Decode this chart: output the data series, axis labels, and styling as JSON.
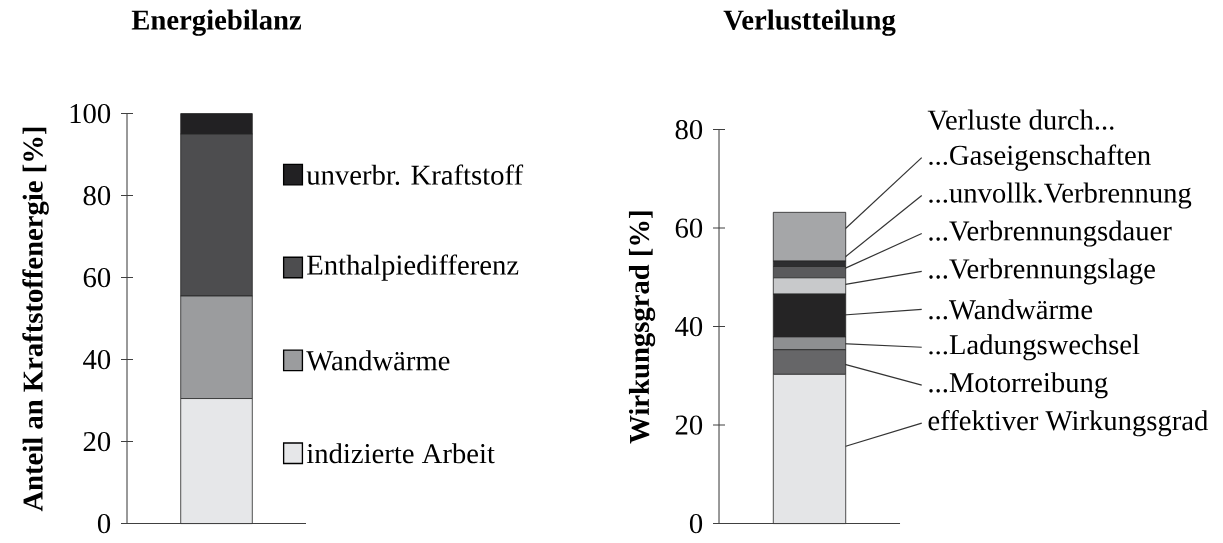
{
  "chart_data": [
    {
      "type": "bar",
      "stacked": true,
      "title": "Energiebilanz",
      "ylabel": "Anteil an Kraftstoffenergie [%]",
      "categories": [
        null
      ],
      "ylim": [
        0,
        100
      ],
      "yticks": [
        0,
        20,
        40,
        60,
        80,
        100
      ],
      "legend": "right",
      "series": [
        {
          "name": "indizierte Arbeit",
          "color": "#e6e7e9",
          "values": [
            30.5
          ]
        },
        {
          "name": "Wandwärme",
          "color": "#9b9c9e",
          "values": [
            25
          ]
        },
        {
          "name": "Enthalpiedifferenz",
          "color": "#4d4d4f",
          "values": [
            39.5
          ]
        },
        {
          "name": "unverbr. Kraftstoff",
          "color": "#222123",
          "values": [
            5
          ]
        }
      ]
    },
    {
      "type": "bar",
      "stacked": true,
      "title": "Verlustteilung",
      "ylabel": "Wirkungsgrad [%]",
      "categories": [
        null
      ],
      "ylim": [
        0,
        80
      ],
      "yticks": [
        0,
        20,
        40,
        60,
        80
      ],
      "legend": "right",
      "legend_title": "Verluste durch...",
      "series": [
        {
          "name": "effektiver Wirkungsgrad",
          "color": "#e4e5e7",
          "values": [
            30.3
          ]
        },
        {
          "name": "...Motorreibung",
          "color": "#666668",
          "values": [
            5
          ]
        },
        {
          "name": "...Ladungswechsel",
          "color": "#8e8f91",
          "values": [
            2.6
          ]
        },
        {
          "name": "...Wandwärme",
          "color": "#252425",
          "values": [
            8.7
          ]
        },
        {
          "name": "...Verbrennungslage",
          "color": "#c8c9cb",
          "values": [
            3.3
          ]
        },
        {
          "name": "...Verbrennungsdauer",
          "color": "#5a5a5c",
          "values": [
            2.3
          ]
        },
        {
          "name": "...unvollk.Verbrennung",
          "color": "#2e2e30",
          "values": [
            1.1
          ]
        },
        {
          "name": "...Gaseigenschaften",
          "color": "#a5a6a8",
          "values": [
            9.9
          ]
        }
      ]
    }
  ]
}
